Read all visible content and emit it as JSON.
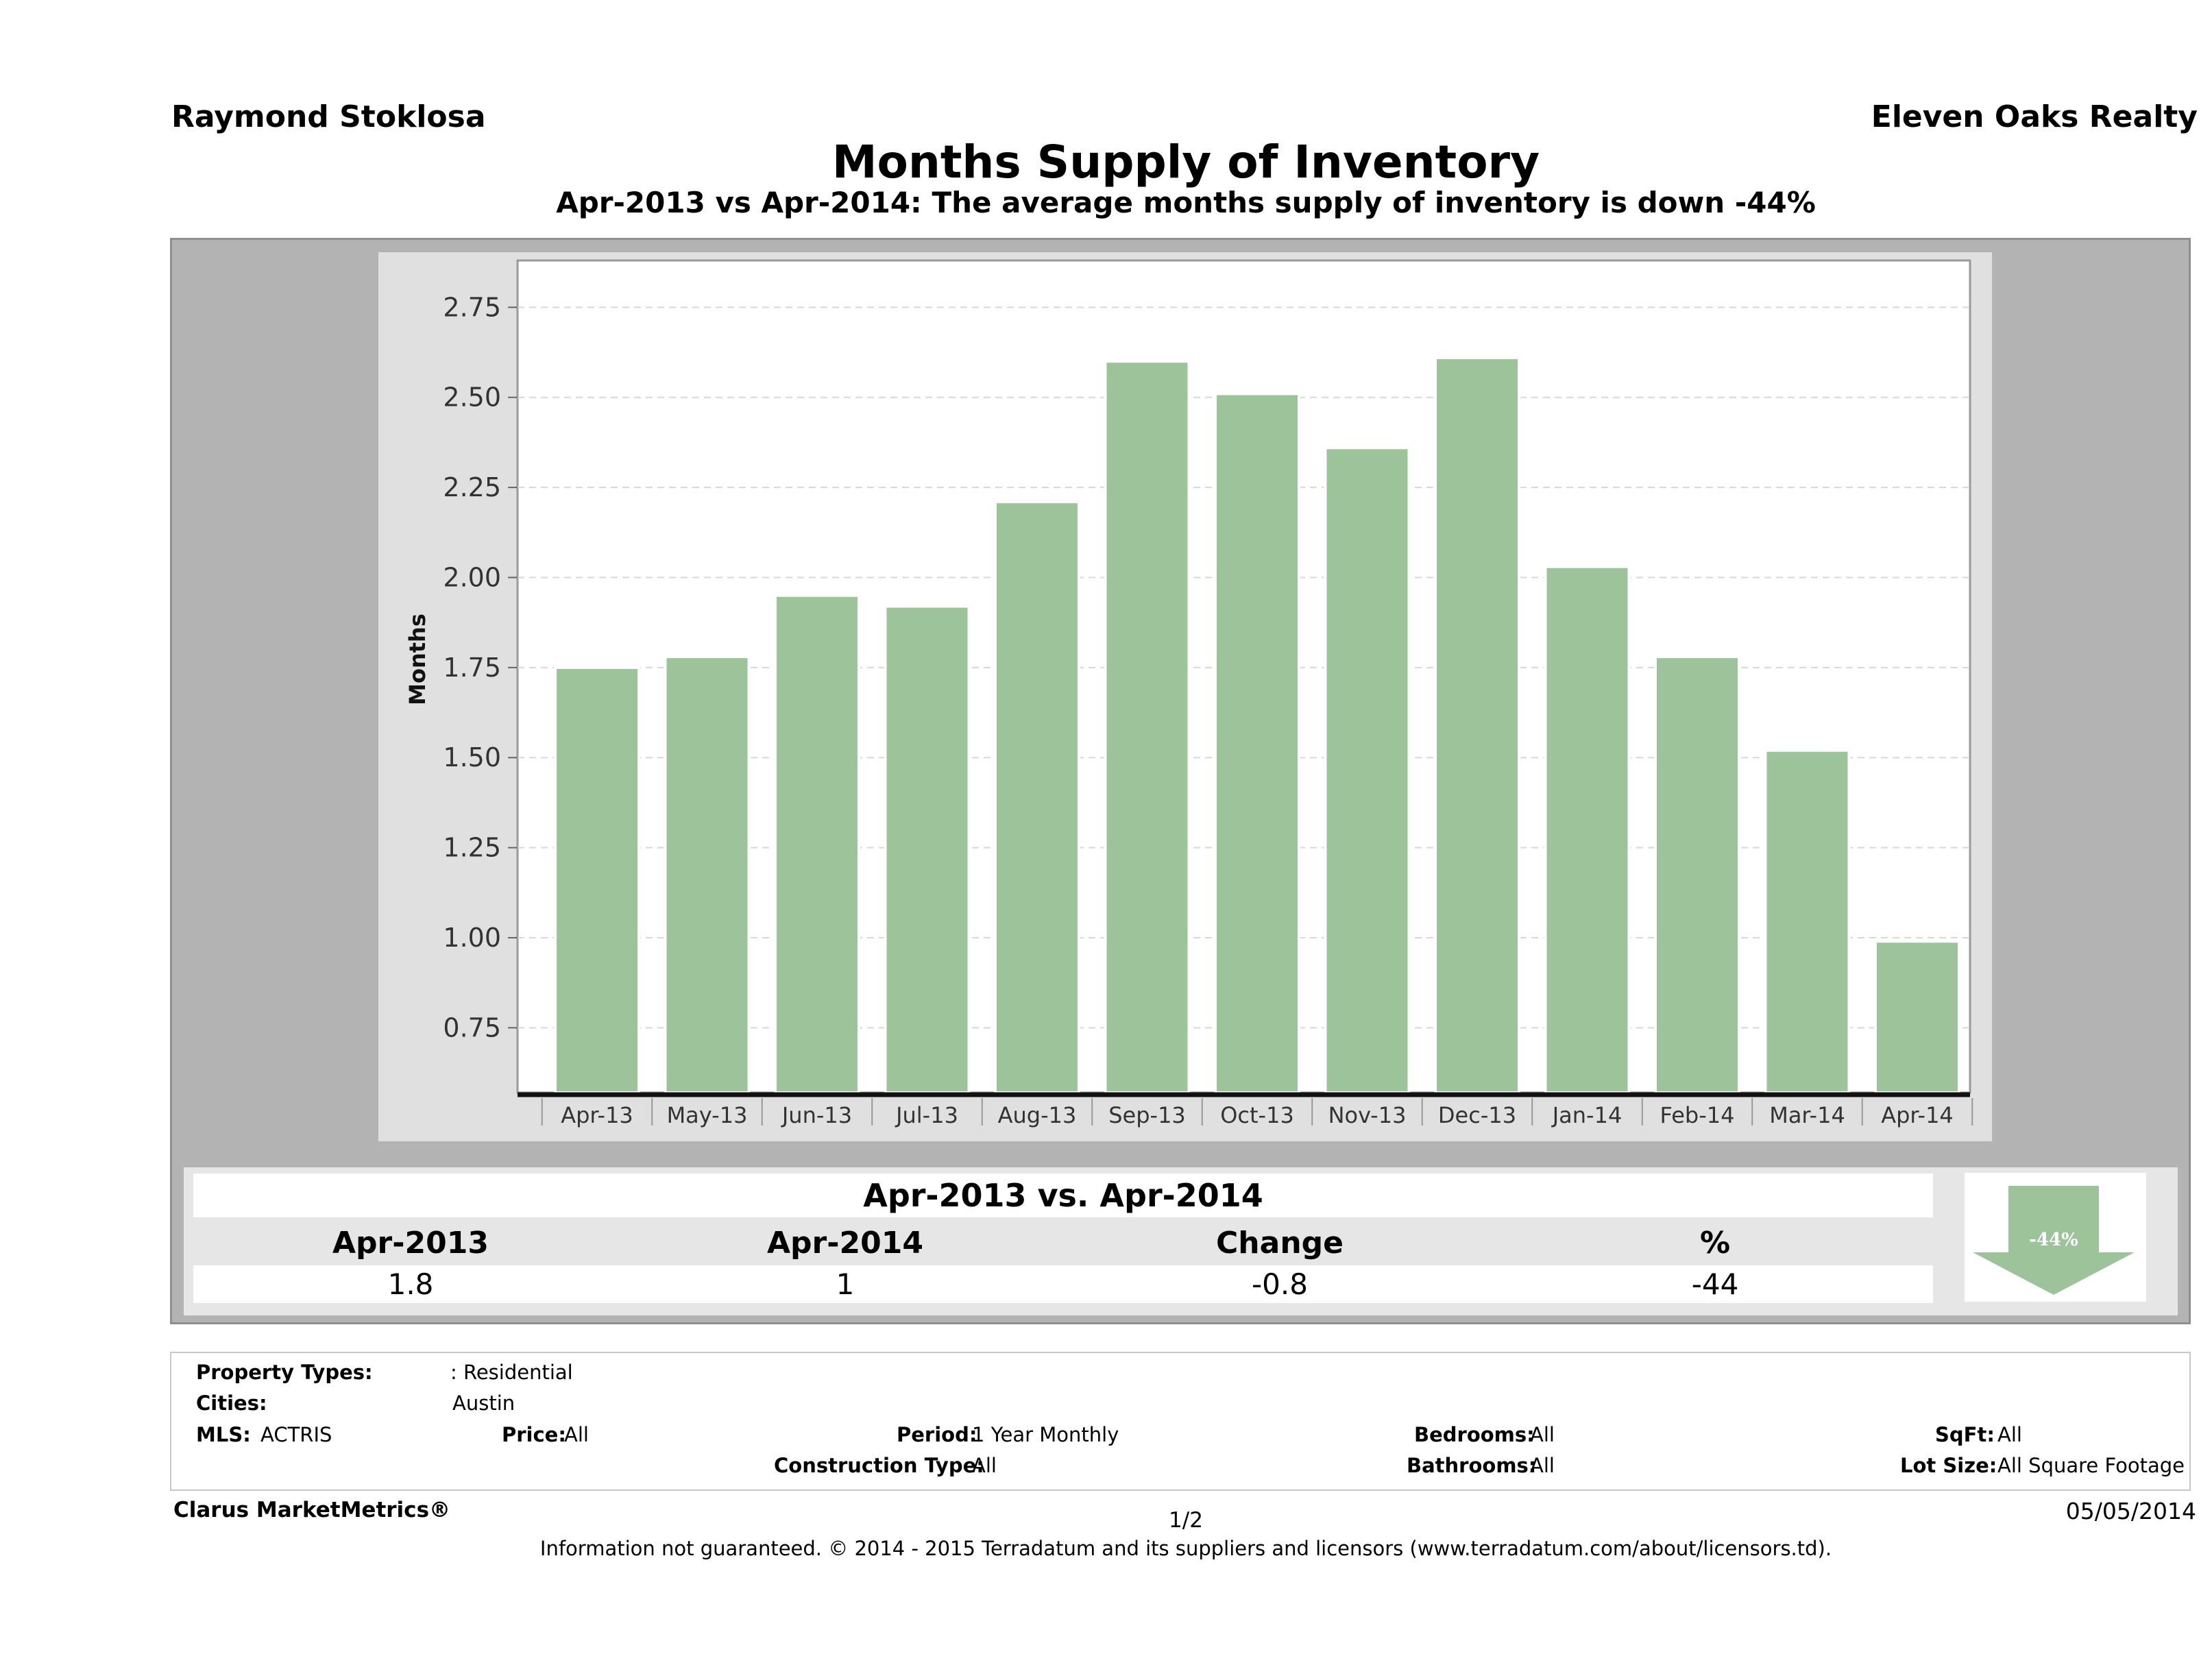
{
  "header": {
    "agent": "Raymond Stoklosa",
    "company": "Eleven Oaks Realty",
    "title": "Months Supply of Inventory",
    "subtitle": "Apr-2013 vs Apr-2014: The average months supply of inventory is down -44%"
  },
  "chart_data": {
    "type": "bar",
    "categories": [
      "Apr-13",
      "May-13",
      "Jun-13",
      "Jul-13",
      "Aug-13",
      "Sep-13",
      "Oct-13",
      "Nov-13",
      "Dec-13",
      "Jan-14",
      "Feb-14",
      "Mar-14",
      "Apr-14"
    ],
    "values": [
      1.75,
      1.78,
      1.95,
      1.92,
      2.21,
      2.6,
      2.51,
      2.36,
      2.61,
      2.03,
      1.78,
      1.52,
      0.99
    ],
    "ylabel": "Months",
    "ylim": [
      0.57,
      2.88
    ],
    "yticks": [
      "0.75",
      "1.00",
      "1.25",
      "1.50",
      "1.75",
      "2.00",
      "2.25",
      "2.50",
      "2.75"
    ],
    "grid": true,
    "bar_color": "#9dc39a"
  },
  "summary": {
    "title": "Apr-2013 vs. Apr-2014",
    "headers": [
      "Apr-2013",
      "Apr-2014",
      "Change",
      "%"
    ],
    "values": [
      "1.8",
      "1",
      "-0.8",
      "-44"
    ],
    "arrow_label": "-44%",
    "arrow_direction": "down",
    "arrow_color": "#9dc39a"
  },
  "filters": {
    "property_types_label": "Property Types:",
    "property_types_value": ": Residential",
    "cities_label": "Cities:",
    "cities_value": "Austin",
    "mls_label": "MLS:",
    "mls_value": "ACTRIS",
    "price_label": "Price:",
    "price_value": "All",
    "period_label": "Period:",
    "period_value": "1 Year Monthly",
    "construction_label": "Construction Type:",
    "construction_value": "All",
    "bedrooms_label": "Bedrooms:",
    "bedrooms_value": "All",
    "bathrooms_label": "Bathrooms:",
    "bathrooms_value": "All",
    "sqft_label": "SqFt:",
    "sqft_value": "All",
    "lotsize_label": "Lot Size:",
    "lotsize_value": "All Square Footage"
  },
  "footer": {
    "brand": "Clarus MarketMetrics®",
    "page": "1/2",
    "date": "05/05/2014",
    "disclaimer": "Information not guaranteed. © 2014 - 2015 Terradatum and its suppliers and licensors (www.terradatum.com/about/licensors.td)."
  }
}
